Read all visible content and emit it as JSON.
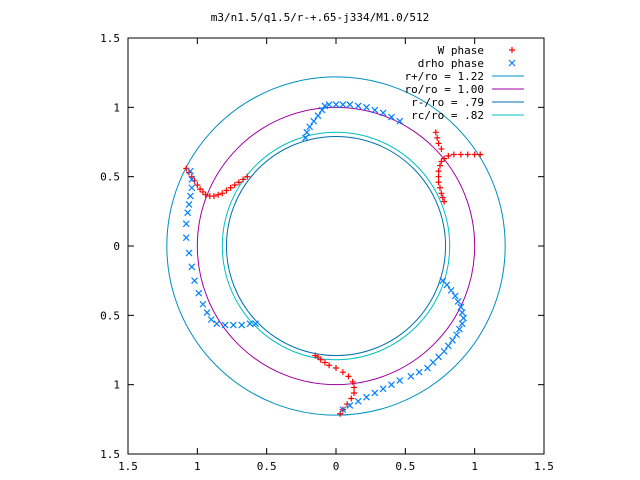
{
  "chart_data": {
    "type": "scatter",
    "title": "m3/n1.5/q1.5/r-+.65-j334/M1.0/512",
    "xlabel": "",
    "ylabel": "",
    "xlim": [
      -1.5,
      1.5
    ],
    "ylim": [
      -1.5,
      1.5
    ],
    "x_ticks": [
      {
        "value": -1.5,
        "label": "1.5"
      },
      {
        "value": -1.0,
        "label": "1"
      },
      {
        "value": -0.5,
        "label": "0.5"
      },
      {
        "value": 0,
        "label": "0"
      },
      {
        "value": 0.5,
        "label": "0.5"
      },
      {
        "value": 1.0,
        "label": "1"
      },
      {
        "value": 1.5,
        "label": "1.5"
      }
    ],
    "y_ticks": [
      {
        "value": 1.5,
        "label": "1.5"
      },
      {
        "value": 1.0,
        "label": "1"
      },
      {
        "value": 0.5,
        "label": "0.5"
      },
      {
        "value": 0,
        "label": "0"
      },
      {
        "value": -0.5,
        "label": "0.5"
      },
      {
        "value": -1.0,
        "label": "1"
      },
      {
        "value": -1.5,
        "label": "1.5"
      }
    ],
    "grid": false,
    "legend_position": "top-right",
    "legend": [
      {
        "label": "W phase",
        "marker": "plus",
        "color": "#ff0000"
      },
      {
        "label": "drho phase",
        "marker": "cross",
        "color": "#0080ff"
      },
      {
        "label": "r+/ro = 1.22",
        "marker": "line",
        "color": "#0090c0"
      },
      {
        "label": "ro/ro = 1.00",
        "marker": "line",
        "color": "#a000a0"
      },
      {
        "label": "r-/ro = .79",
        "marker": "line",
        "color": "#0070b0"
      },
      {
        "label": "rc/ro = .82",
        "marker": "line",
        "color": "#00c0c0"
      }
    ],
    "circles": [
      {
        "name": "r+/ro",
        "radius": 1.22,
        "color": "#0090c0"
      },
      {
        "name": "ro/ro",
        "radius": 1.0,
        "color": "#a000a0"
      },
      {
        "name": "r-/ro",
        "radius": 0.79,
        "color": "#0070b0"
      },
      {
        "name": "rc/ro",
        "radius": 0.82,
        "color": "#00c0c0"
      }
    ],
    "series": [
      {
        "name": "W phase",
        "marker": "plus",
        "color": "#ff0000",
        "points": [
          [
            -1.08,
            0.56
          ],
          [
            -1.06,
            0.53
          ],
          [
            -1.04,
            0.5
          ],
          [
            -1.02,
            0.47
          ],
          [
            -1.0,
            0.44
          ],
          [
            -0.98,
            0.41
          ],
          [
            -0.96,
            0.39
          ],
          [
            -0.94,
            0.37
          ],
          [
            -0.91,
            0.36
          ],
          [
            -0.88,
            0.36
          ],
          [
            -0.85,
            0.37
          ],
          [
            -0.82,
            0.38
          ],
          [
            -0.79,
            0.4
          ],
          [
            -0.76,
            0.42
          ],
          [
            -0.73,
            0.44
          ],
          [
            -0.7,
            0.46
          ],
          [
            -0.67,
            0.48
          ],
          [
            -0.64,
            0.5
          ],
          [
            0.78,
            0.32
          ],
          [
            0.77,
            0.35
          ],
          [
            0.76,
            0.38
          ],
          [
            0.75,
            0.42
          ],
          [
            0.74,
            0.46
          ],
          [
            0.74,
            0.5
          ],
          [
            0.74,
            0.54
          ],
          [
            0.75,
            0.58
          ],
          [
            0.76,
            0.61
          ],
          [
            0.78,
            0.63
          ],
          [
            0.81,
            0.65
          ],
          [
            0.85,
            0.66
          ],
          [
            0.9,
            0.66
          ],
          [
            0.95,
            0.66
          ],
          [
            1.0,
            0.66
          ],
          [
            1.04,
            0.66
          ],
          [
            0.72,
            0.82
          ],
          [
            0.73,
            0.78
          ],
          [
            0.74,
            0.74
          ],
          [
            0.76,
            0.7
          ],
          [
            -0.15,
            -0.79
          ],
          [
            -0.13,
            -0.8
          ],
          [
            -0.11,
            -0.82
          ],
          [
            -0.08,
            -0.84
          ],
          [
            -0.05,
            -0.86
          ],
          [
            0.0,
            -0.88
          ],
          [
            0.05,
            -0.91
          ],
          [
            0.09,
            -0.94
          ],
          [
            0.12,
            -0.98
          ],
          [
            0.13,
            -1.02
          ],
          [
            0.13,
            -1.06
          ],
          [
            0.11,
            -1.1
          ],
          [
            0.08,
            -1.14
          ],
          [
            0.05,
            -1.18
          ],
          [
            0.03,
            -1.21
          ]
        ]
      },
      {
        "name": "drho phase",
        "marker": "cross",
        "color": "#0080ff",
        "points": [
          [
            -1.05,
            0.54
          ],
          [
            -1.04,
            0.48
          ],
          [
            -1.04,
            0.42
          ],
          [
            -1.05,
            0.36
          ],
          [
            -1.06,
            0.3
          ],
          [
            -1.07,
            0.24
          ],
          [
            -1.08,
            0.16
          ],
          [
            -1.08,
            0.06
          ],
          [
            -1.06,
            -0.05
          ],
          [
            -1.04,
            -0.15
          ],
          [
            -1.02,
            -0.25
          ],
          [
            -0.99,
            -0.34
          ],
          [
            -0.96,
            -0.42
          ],
          [
            -0.93,
            -0.48
          ],
          [
            -0.9,
            -0.53
          ],
          [
            -0.86,
            -0.56
          ],
          [
            -0.8,
            -0.57
          ],
          [
            -0.74,
            -0.57
          ],
          [
            -0.68,
            -0.57
          ],
          [
            -0.62,
            -0.56
          ],
          [
            -0.58,
            -0.56
          ],
          [
            -0.22,
            0.78
          ],
          [
            -0.21,
            0.82
          ],
          [
            -0.19,
            0.86
          ],
          [
            -0.16,
            0.9
          ],
          [
            -0.13,
            0.94
          ],
          [
            -0.1,
            0.98
          ],
          [
            -0.08,
            1.01
          ],
          [
            -0.05,
            1.02
          ],
          [
            0.0,
            1.02
          ],
          [
            0.05,
            1.02
          ],
          [
            0.1,
            1.02
          ],
          [
            0.16,
            1.01
          ],
          [
            0.22,
            1.0
          ],
          [
            0.28,
            0.98
          ],
          [
            0.34,
            0.96
          ],
          [
            0.4,
            0.93
          ],
          [
            0.46,
            0.9
          ],
          [
            0.77,
            -0.25
          ],
          [
            0.8,
            -0.28
          ],
          [
            0.83,
            -0.32
          ],
          [
            0.86,
            -0.36
          ],
          [
            0.88,
            -0.4
          ],
          [
            0.9,
            -0.44
          ],
          [
            0.91,
            -0.48
          ],
          [
            0.92,
            -0.52
          ],
          [
            0.91,
            -0.56
          ],
          [
            0.89,
            -0.6
          ],
          [
            0.87,
            -0.64
          ],
          [
            0.84,
            -0.68
          ],
          [
            0.81,
            -0.72
          ],
          [
            0.78,
            -0.76
          ],
          [
            0.74,
            -0.8
          ],
          [
            0.7,
            -0.84
          ],
          [
            0.66,
            -0.88
          ],
          [
            0.6,
            -0.91
          ],
          [
            0.54,
            -0.94
          ],
          [
            0.46,
            -0.97
          ],
          [
            0.4,
            -1.0
          ],
          [
            0.34,
            -1.03
          ],
          [
            0.28,
            -1.06
          ],
          [
            0.22,
            -1.09
          ],
          [
            0.16,
            -1.12
          ],
          [
            0.1,
            -1.15
          ],
          [
            0.05,
            -1.18
          ]
        ]
      }
    ]
  }
}
